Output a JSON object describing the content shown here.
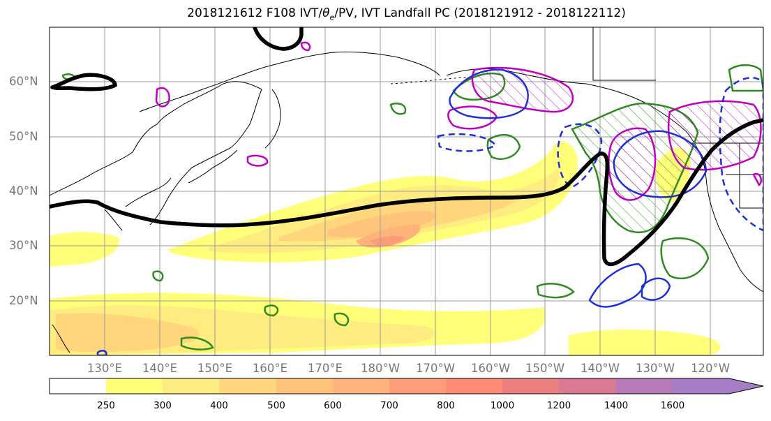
{
  "title_prefix": "2018121612 F108 IVT/",
  "title_theta": "θ",
  "title_sub": "e",
  "title_suffix": "/PV, IVT Landfall PC (2018121912 - 2018122112)",
  "lat_labels": [
    "60°N",
    "50°N",
    "40°N",
    "30°N",
    "20°N"
  ],
  "lon_labels": [
    "130°E",
    "140°E",
    "150°E",
    "160°E",
    "170°E",
    "180°W",
    "170°W",
    "160°W",
    "150°W",
    "140°W",
    "130°W",
    "120°W"
  ],
  "colorbar": {
    "ticks": [
      "250",
      "300",
      "400",
      "500",
      "600",
      "700",
      "800",
      "1000",
      "1200",
      "1400",
      "1600"
    ],
    "colors": [
      "#ffffff",
      "#ffff7a",
      "#ffec80",
      "#ffd67c",
      "#ffc47a",
      "#ffb37a",
      "#ff9c78",
      "#ff8a78",
      "#ee7f7f",
      "#da7a92",
      "#b77ab8",
      "#a57ec6"
    ],
    "extend": "max"
  },
  "legend_colors": {
    "jet_line": "#000000",
    "pv_positive": "#2e8b1e",
    "theta_e_contour": "#c000c0",
    "ivt_pc_contour": "#1f2fd8",
    "coastline": "#000000",
    "gridline": "#9a9a9a"
  },
  "map": {
    "projection": "PlateCarree",
    "lon_range": [
      "120°E",
      "110°W"
    ],
    "lat_range": [
      "10°N",
      "70°N"
    ],
    "grid": true
  }
}
